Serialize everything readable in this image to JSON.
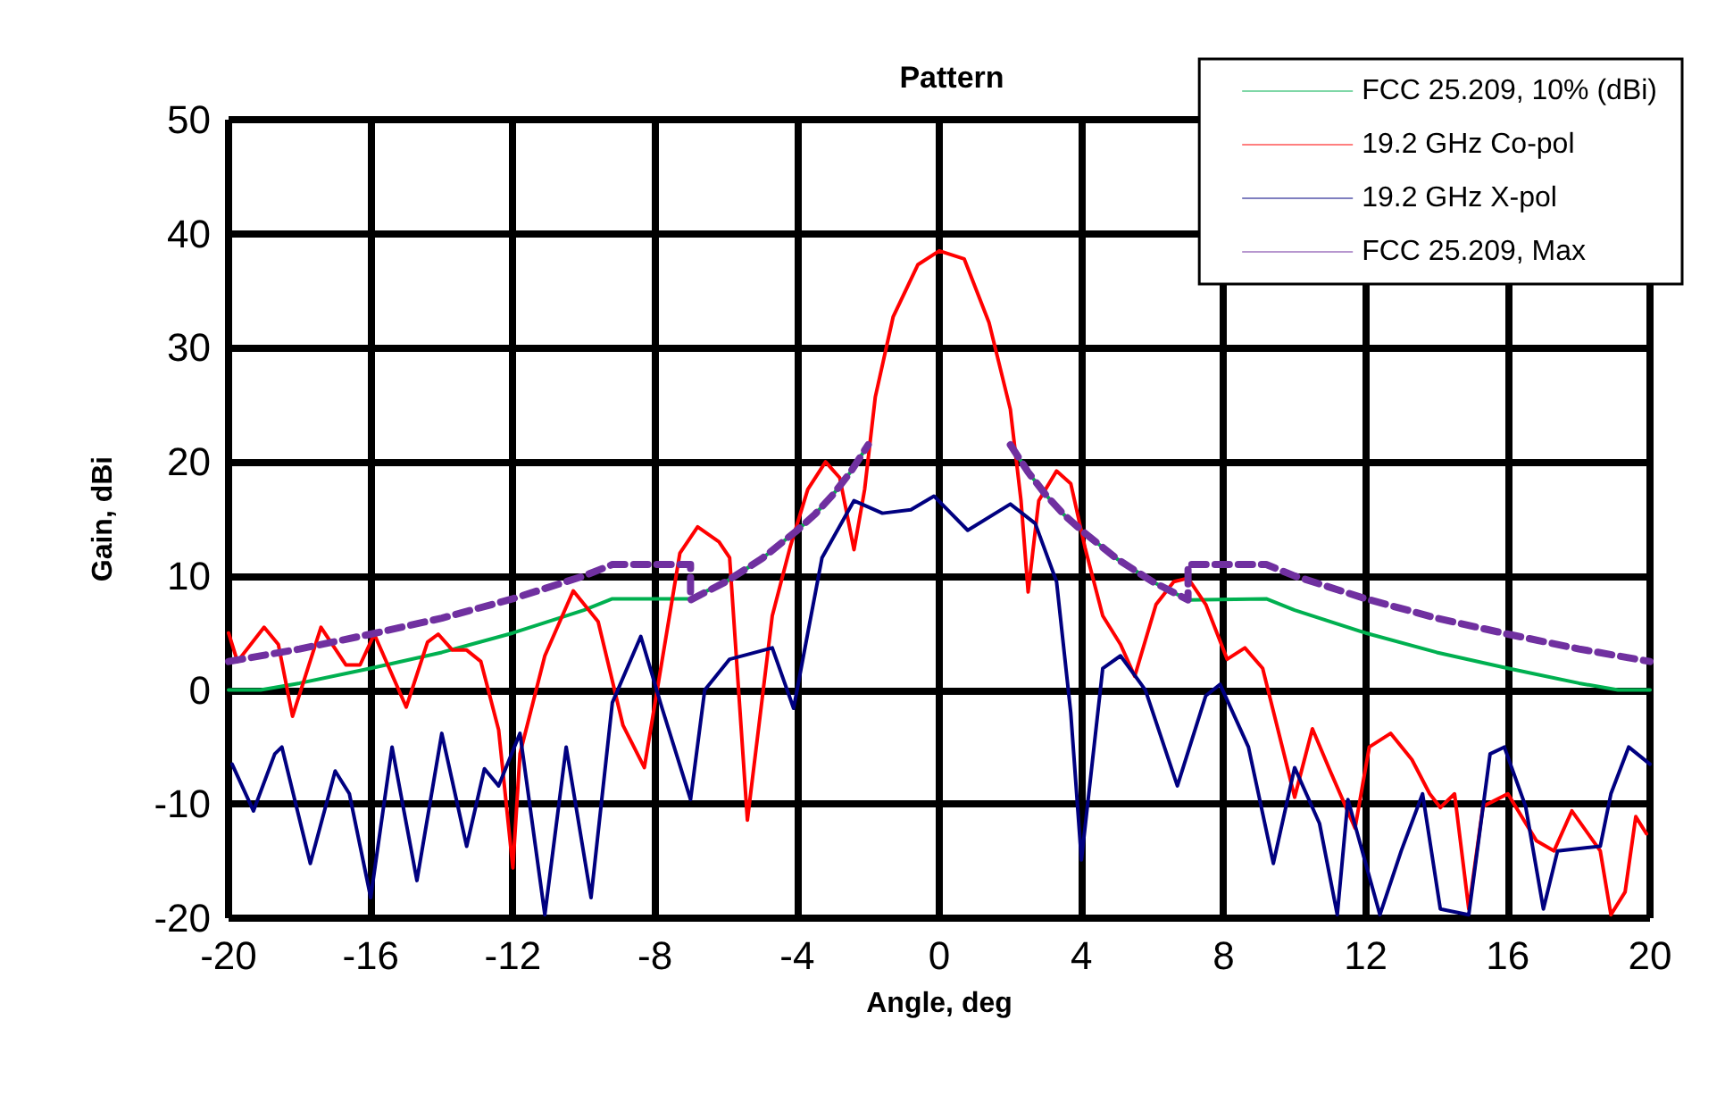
{
  "chart_data": {
    "type": "line",
    "title": "Pattern",
    "xlabel": "Angle, deg",
    "ylabel": "Gain, dBi",
    "xlim": [
      -20,
      20
    ],
    "xticks": [
      -20,
      -16,
      -12,
      -8,
      -4,
      0,
      4,
      8,
      12,
      16,
      20
    ],
    "ylim": [
      -20,
      50
    ],
    "yticks": [
      -20,
      -10,
      0,
      10,
      20,
      30,
      40,
      50
    ],
    "grid": true,
    "legend": "top right",
    "marker": "none",
    "series": [
      {
        "name": "FCC 25.209, 10% (dBi)",
        "color": "#00b050",
        "line_style": "solid",
        "x": [
          -20,
          -19.1,
          -18,
          -16,
          -14,
          -12,
          -10,
          -9.2,
          -7,
          -6,
          -5,
          -4,
          -3.5,
          -3,
          -2.5,
          -2,
          0,
          2,
          2.5,
          3,
          3.5,
          4,
          5,
          6,
          7,
          9.2,
          10,
          12,
          14,
          16,
          18,
          19.1,
          20
        ],
        "values": [
          0,
          0,
          0.6,
          1.9,
          3.3,
          5,
          7,
          8,
          8,
          9.5,
          11.5,
          14,
          15.4,
          17.1,
          19.1,
          21.5,
          null,
          21.5,
          19.1,
          17.1,
          15.4,
          14,
          11.5,
          9.5,
          7.9,
          8,
          7,
          5,
          3.3,
          1.9,
          0.6,
          0,
          0
        ]
      },
      {
        "name": "19.2 GHz Co-pol",
        "color": "#ff0000",
        "line_style": "solid",
        "x": [
          -20,
          -19.75,
          -19,
          -18.6,
          -18.2,
          -17.4,
          -16.7,
          -16.3,
          -15.9,
          -15,
          -14.4,
          -14.1,
          -13.7,
          -13.3,
          -12.9,
          -12.4,
          -12,
          -11.8,
          -11.1,
          -10.3,
          -9.6,
          -8.9,
          -8.3,
          -7.3,
          -6.8,
          -6.2,
          -5.9,
          -5.4,
          -4.7,
          -4.2,
          -3.7,
          -3.2,
          -2.8,
          -2.4,
          -2.1,
          -1.8,
          -1.3,
          -0.6,
          0,
          0.7,
          1.4,
          2,
          2.3,
          2.5,
          2.8,
          3.3,
          3.7,
          4.1,
          4.6,
          5.1,
          5.5,
          6.1,
          6.6,
          7,
          7.5,
          8.1,
          8.6,
          9.1,
          9.7,
          10,
          10.5,
          11,
          11.7,
          12.1,
          12.7,
          13.3,
          13.8,
          14.1,
          14.5,
          14.9,
          15.3,
          16,
          16.8,
          17.3,
          17.8,
          18.6,
          18.9,
          19.3,
          19.6,
          19.9
        ],
        "values": [
          5,
          2.5,
          5.5,
          4,
          -2.3,
          5.5,
          2.2,
          2.2,
          4.9,
          -1.5,
          4.2,
          4.9,
          3.5,
          3.5,
          2.5,
          -3.5,
          -15.6,
          -5.6,
          3,
          8.7,
          6,
          -3.1,
          -6.8,
          12,
          14.3,
          13,
          11.6,
          -11.4,
          6.5,
          12.5,
          17.6,
          20,
          18.6,
          12.3,
          17.6,
          25.7,
          32.7,
          37.3,
          38.5,
          37.8,
          32.2,
          24.6,
          16.6,
          8.6,
          16.6,
          19.2,
          18.1,
          12.5,
          6.5,
          4,
          1.2,
          7.5,
          9.5,
          9.8,
          7.5,
          2.7,
          3.7,
          1.9,
          -5.6,
          -9.4,
          -3.4,
          -7.1,
          -12.1,
          -5,
          -3.8,
          -6.1,
          -9.1,
          -10.3,
          -9.1,
          -19.2,
          -10.2,
          -9.1,
          -13.2,
          -14.1,
          -10.6,
          -14.1,
          -19.7,
          -17.7,
          -11.1,
          -12.6
        ]
      },
      {
        "name": "19.2 GHz X-pol",
        "color": "#000080",
        "line_style": "solid",
        "x": [
          -19.9,
          -19.3,
          -18.7,
          -18.5,
          -17.7,
          -17,
          -16.6,
          -16,
          -15.4,
          -14.7,
          -14,
          -13.3,
          -12.8,
          -12.4,
          -11.8,
          -11.1,
          -10.5,
          -9.8,
          -9.2,
          -8.4,
          -7.8,
          -7,
          -6.6,
          -5.9,
          -4.7,
          -4.1,
          -3.3,
          -2.4,
          -1.6,
          -0.8,
          -0.15,
          0.8,
          2,
          2.7,
          3.3,
          3.7,
          4,
          4.6,
          5.1,
          5.8,
          6.7,
          7.5,
          7.9,
          8.7,
          9.4,
          10,
          10.7,
          11.2,
          11.5,
          12.4,
          13,
          13.6,
          14.1,
          14.9,
          15.5,
          15.9,
          16.5,
          17,
          17.4,
          18.6,
          18.9,
          19.4,
          20
        ],
        "values": [
          -6.5,
          -10.6,
          -5.6,
          -5,
          -15.2,
          -7.1,
          -9.1,
          -18.2,
          -5,
          -16.7,
          -3.8,
          -13.7,
          -6.9,
          -8.4,
          -3.8,
          -19.7,
          -5,
          -18.2,
          -1.1,
          4.7,
          -1.6,
          -9.6,
          0,
          2.7,
          3.7,
          -1.6,
          11.6,
          16.6,
          15.5,
          15.8,
          17,
          14,
          16.3,
          14.6,
          9.5,
          -2,
          -14.9,
          1.9,
          3,
          0,
          -8.4,
          -0.5,
          0.5,
          -5,
          -15.2,
          -6.8,
          -11.7,
          -19.7,
          -9.6,
          -19.7,
          -14.1,
          -9.1,
          -19.2,
          -19.7,
          -5.6,
          -5,
          -10.2,
          -19.2,
          -14.1,
          -13.7,
          -9.1,
          -5,
          -6.5
        ]
      },
      {
        "name": "FCC 25.209, Max",
        "color": "#7030a0",
        "line_style": "dashed",
        "x": [
          -20,
          -18,
          -16,
          -14,
          -12,
          -10,
          -9.2,
          -7,
          -7,
          -6,
          -5,
          -4,
          -3.5,
          -3,
          -2.5,
          -2,
          0,
          2,
          2.5,
          3,
          3.5,
          4,
          5,
          6,
          7,
          7,
          9.2,
          10,
          12,
          14,
          16,
          18,
          20
        ],
        "values": [
          2.5,
          3.6,
          4.9,
          6.3,
          8,
          10,
          11,
          11,
          7.9,
          9.5,
          11.5,
          14,
          15.4,
          17.1,
          19.1,
          21.5,
          null,
          21.5,
          19.1,
          17.1,
          15.4,
          14,
          11.5,
          9.5,
          7.9,
          11,
          11,
          10,
          8,
          6.3,
          4.9,
          3.6,
          2.5
        ]
      }
    ]
  }
}
